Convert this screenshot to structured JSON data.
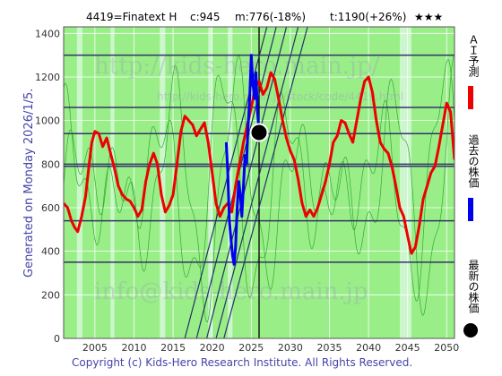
{
  "header": {
    "ticker": "4419=Finatext H",
    "current": "c:945",
    "min_forecast": "m:776(-18%)",
    "target": "t:1190(+26%)",
    "stars": "★★★"
  },
  "side_label": "Generated on Monday 2026/1/5.",
  "copyright": "Copyright (c) Kids-Hero Research Institute. All Rights Reserved.",
  "watermarks": {
    "site": "http://kids-hero.main.jp/",
    "sub": "http://kids-hero.main.jp/stock/code/4419.html",
    "email": "info@kids-hero.main.jp"
  },
  "legend": [
    {
      "label": "ＡＩ予測",
      "color": "#ee0000",
      "marker": "bar"
    },
    {
      "label": "過去の株価",
      "color": "#0000ee",
      "marker": "bar"
    },
    {
      "label": "最新の株価",
      "color": "#000000",
      "marker": "dot"
    }
  ],
  "colors": {
    "ai_forecast": "#ee0000",
    "past_price": "#0000ee",
    "latest": "#000000",
    "support_lines": "#333366",
    "trend_lines": "#223366",
    "background_green": "#99ee88",
    "background_light": "#ccf7cc",
    "oscillator": "#33aa33"
  },
  "chart_data": {
    "type": "line",
    "xlim": [
      2001,
      2051
    ],
    "ylim": [
      0,
      1430
    ],
    "x_ticks": [
      2005,
      2010,
      2015,
      2020,
      2025,
      2030,
      2035,
      2040,
      2045,
      2050
    ],
    "y_ticks": [
      0,
      200,
      400,
      600,
      800,
      1000,
      1200,
      1400
    ],
    "horizontal_levels": [
      1300,
      1060,
      940,
      800,
      790,
      540,
      350
    ],
    "current_year_marker": 2026,
    "latest_point": {
      "x": 2026.0,
      "y": 945
    },
    "light_bands": [
      [
        2002.7,
        2003.4
      ],
      [
        2007.0,
        2007.5
      ],
      [
        2013.3,
        2014.0
      ],
      [
        2019.5,
        2020.0
      ],
      [
        2022.0,
        2022.6
      ],
      [
        2044.0,
        2045.5
      ]
    ],
    "series": [
      {
        "name": "ＡＩ予測",
        "x": [
          2001.0,
          2001.5,
          2002.0,
          2002.4,
          2002.8,
          2003.3,
          2003.8,
          2004.2,
          2004.6,
          2005.0,
          2005.5,
          2006.0,
          2006.5,
          2007.0,
          2007.5,
          2008.0,
          2008.5,
          2009.0,
          2009.5,
          2010.0,
          2010.5,
          2011.0,
          2011.5,
          2012.0,
          2012.5,
          2013.0,
          2013.5,
          2014.0,
          2014.5,
          2015.0,
          2015.5,
          2016.0,
          2016.5,
          2017.0,
          2017.5,
          2018.0,
          2018.5,
          2019.0,
          2019.5,
          2020.0,
          2020.5,
          2021.0,
          2021.5,
          2022.0,
          2022.5,
          2023.0,
          2023.5,
          2024.0,
          2024.5,
          2025.0,
          2025.5,
          2026.0,
          2026.5,
          2027.0,
          2027.5,
          2028.0,
          2028.5,
          2029.0,
          2029.5,
          2030.0,
          2030.5,
          2031.0,
          2031.5,
          2032.0,
          2032.5,
          2033.0,
          2033.5,
          2034.0,
          2034.5,
          2035.0,
          2035.5,
          2036.0,
          2036.5,
          2037.0,
          2037.5,
          2038.0,
          2038.5,
          2039.0,
          2039.5,
          2040.0,
          2040.5,
          2041.0,
          2041.5,
          2042.0,
          2042.5,
          2043.0,
          2043.5,
          2044.0,
          2044.5,
          2045.0,
          2045.5,
          2046.0,
          2046.5,
          2047.0,
          2047.5,
          2048.0,
          2048.5,
          2049.0,
          2049.5,
          2050.0,
          2050.5,
          2051.0
        ],
        "values": [
          620,
          600,
          540,
          510,
          490,
          560,
          650,
          780,
          900,
          950,
          940,
          880,
          920,
          850,
          780,
          700,
          660,
          640,
          630,
          600,
          560,
          590,
          720,
          800,
          850,
          800,
          660,
          580,
          610,
          660,
          800,
          950,
          1020,
          1000,
          980,
          930,
          960,
          990,
          900,
          760,
          620,
          560,
          600,
          620,
          580,
          700,
          800,
          900,
          980,
          1060,
          1150,
          1180,
          1120,
          1150,
          1220,
          1190,
          1100,
          1000,
          920,
          860,
          820,
          730,
          620,
          560,
          590,
          560,
          600,
          660,
          720,
          800,
          900,
          930,
          1000,
          990,
          940,
          900,
          1000,
          1100,
          1180,
          1200,
          1130,
          1000,
          900,
          870,
          850,
          790,
          700,
          600,
          560,
          470,
          390,
          420,
          520,
          640,
          700,
          760,
          790,
          880,
          980,
          1080,
          1040,
          820
        ]
      },
      {
        "name": "過去の株価",
        "x": [
          2021.8,
          2022.0,
          2022.2,
          2022.4,
          2022.6,
          2022.8,
          2023.0,
          2023.2,
          2023.4,
          2023.6,
          2023.8,
          2024.0,
          2024.2,
          2024.4,
          2024.6,
          2024.8,
          2025.0,
          2025.2,
          2025.4,
          2025.6,
          2025.8,
          2026.0
        ],
        "values": [
          900,
          760,
          540,
          460,
          380,
          340,
          420,
          600,
          720,
          660,
          560,
          700,
          840,
          800,
          980,
          1100,
          1300,
          1180,
          1100,
          1220,
          1040,
          945
        ]
      }
    ]
  }
}
